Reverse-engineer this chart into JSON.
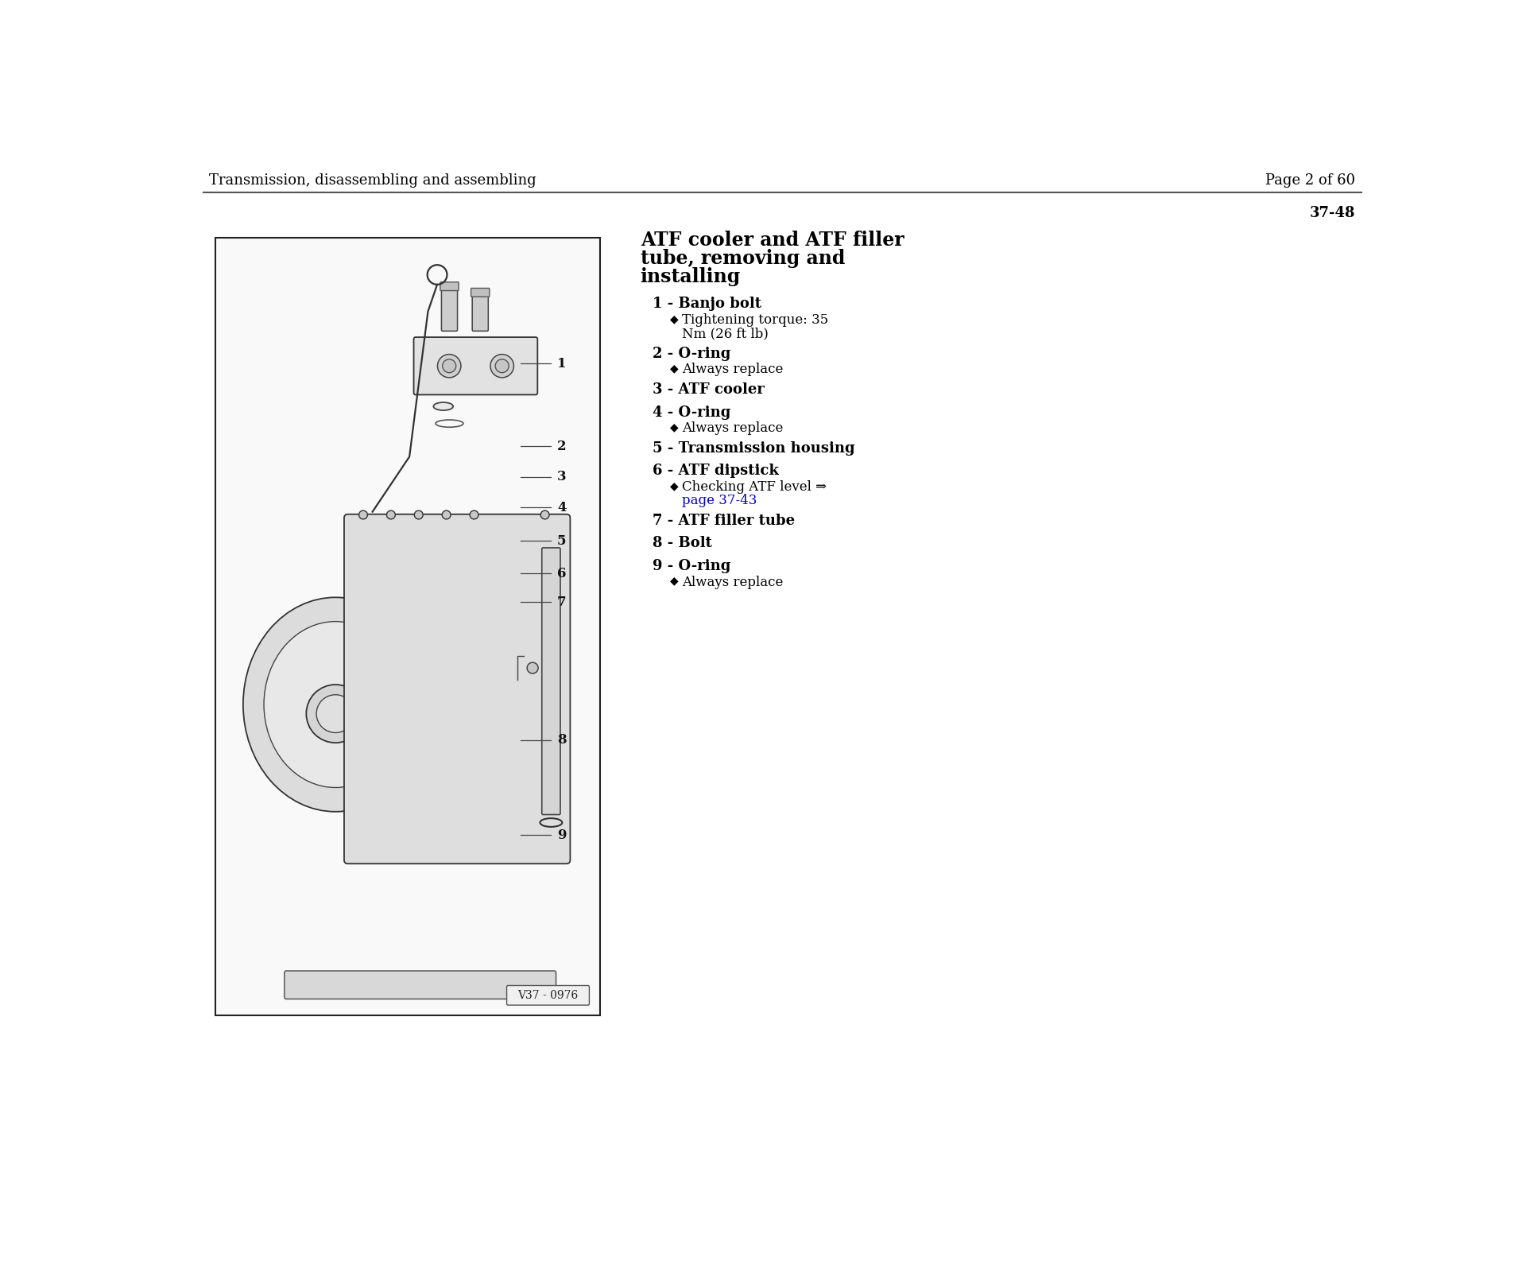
{
  "header_left": "Transmission, disassembling and assembling",
  "header_right": "Page 2 of 60",
  "page_ref": "37-48",
  "diagram_label": "V37 - 0976",
  "title_line1": "ATF cooler and ATF filler",
  "title_line2": "tube, removing and",
  "title_line3": "installing",
  "items": [
    {
      "number": "1",
      "name": "Banjo bolt",
      "bullets": [
        [
          "Tightening torque: 35",
          "Nm (26 ft lb)"
        ]
      ],
      "bullet_links": [
        false
      ]
    },
    {
      "number": "2",
      "name": "O-ring",
      "bullets": [
        [
          "Always replace"
        ]
      ],
      "bullet_links": [
        false
      ]
    },
    {
      "number": "3",
      "name": "ATF cooler",
      "bullets": [],
      "bullet_links": []
    },
    {
      "number": "4",
      "name": "O-ring",
      "bullets": [
        [
          "Always replace"
        ]
      ],
      "bullet_links": [
        false
      ]
    },
    {
      "number": "5",
      "name": "Transmission housing",
      "bullets": [],
      "bullet_links": []
    },
    {
      "number": "6",
      "name": "ATF dipstick",
      "bullets": [
        [
          "Checking ATF level ⇒",
          "page 37-43"
        ]
      ],
      "bullet_links": [
        true
      ]
    },
    {
      "number": "7",
      "name": "ATF filler tube",
      "bullets": [],
      "bullet_links": []
    },
    {
      "number": "8",
      "name": "Bolt",
      "bullets": [],
      "bullet_links": []
    },
    {
      "number": "9",
      "name": "O-ring",
      "bullets": [
        [
          "Always replace"
        ]
      ],
      "bullet_links": [
        false
      ]
    }
  ],
  "bg_color": "#ffffff",
  "text_color": "#000000",
  "header_font_size": 13,
  "title_font_size": 17,
  "item_font_size": 13,
  "bullet_font_size": 12,
  "link_color": "#0000cc",
  "separator_color": "#555555"
}
